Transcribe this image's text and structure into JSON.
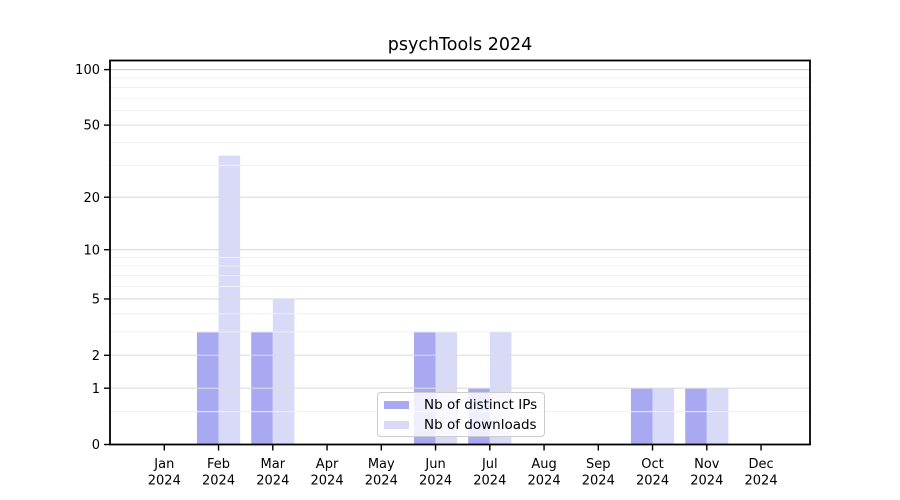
{
  "chart_data": {
    "type": "bar",
    "title": "psychTools 2024",
    "year_label": "2024",
    "months": [
      "Jan",
      "Feb",
      "Mar",
      "Apr",
      "May",
      "Jun",
      "Jul",
      "Aug",
      "Sep",
      "Oct",
      "Nov",
      "Dec"
    ],
    "series": [
      {
        "name": "Nb of distinct IPs",
        "color": "#a9a9f2",
        "values": [
          0,
          3,
          3,
          0,
          0,
          3,
          1,
          0,
          0,
          1,
          1,
          0
        ]
      },
      {
        "name": "Nb of downloads",
        "color": "#d9d9f8",
        "values": [
          0,
          34,
          5,
          0,
          0,
          3,
          3,
          0,
          0,
          1,
          1,
          0
        ]
      }
    ],
    "y_axis": {
      "scale": "log10(1+x)",
      "ticks": [
        0,
        1,
        2,
        5,
        10,
        20,
        50,
        100
      ],
      "minor_ticks": [
        0.5,
        3,
        4,
        6,
        7,
        8,
        9,
        30,
        40,
        60,
        70,
        80,
        90
      ],
      "ylim": [
        0,
        112
      ]
    },
    "grid": true,
    "legend_position": "inside-bottom-center",
    "colors": {
      "frame": "#000000",
      "tick_text": "#000000",
      "grid_major": "#dcdcdc",
      "grid_top": "#c6c6c6",
      "grid_minor": "#f0f0f0"
    }
  }
}
